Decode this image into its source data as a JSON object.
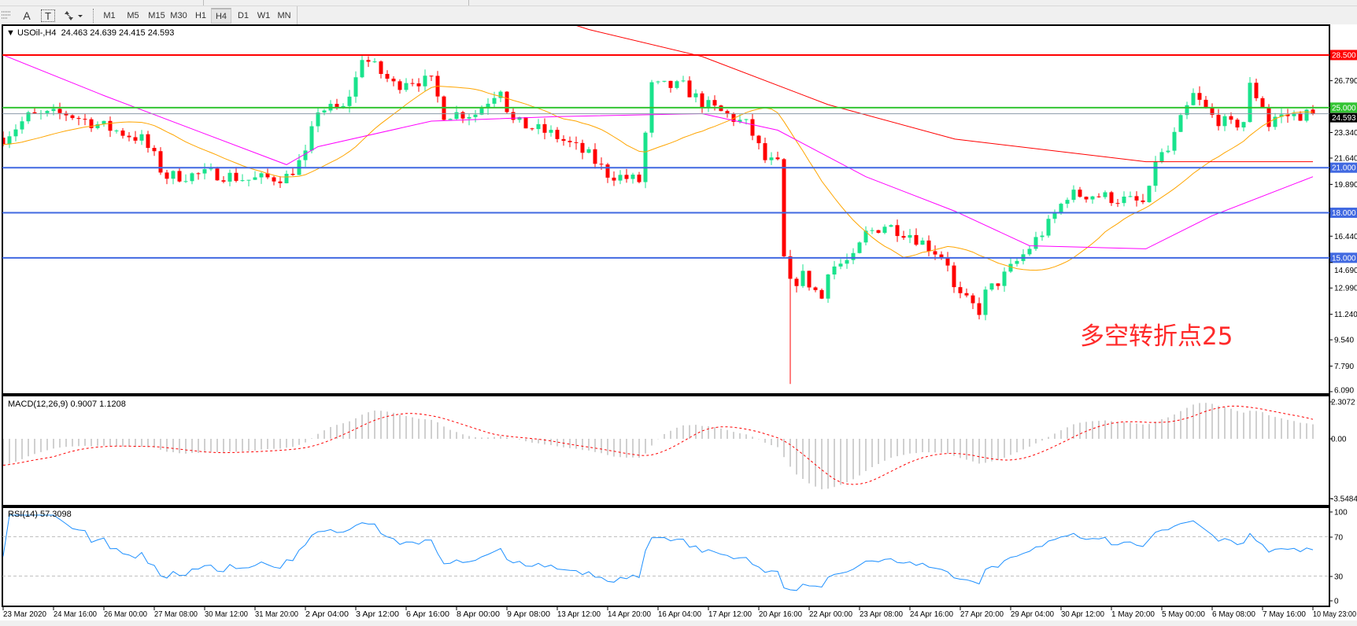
{
  "toolbar": {
    "icons": [
      "period-separator-icon",
      "text-icon",
      "text-label-icon",
      "arrows-icon"
    ],
    "text_icon_glyph": "A",
    "label_icon_glyph": "T",
    "timeframes": [
      "M1",
      "M5",
      "M15",
      "M30",
      "H1",
      "H4",
      "D1",
      "W1",
      "MN"
    ],
    "active_timeframe": "H4"
  },
  "chart": {
    "symbol": "USOil-,H4",
    "ohlc": "24.463 24.639 24.415 24.593",
    "annotation": "多空转折点25",
    "annotation_color": "#ff2a2a",
    "bull_color": "#19e38c",
    "bear_color": "#ff0000",
    "current_price": {
      "price": 24.593,
      "label": "24.593"
    },
    "price_axis": [
      "26.790",
      "23.340",
      "21.640",
      "19.890",
      "16.440",
      "14.690",
      "12.990",
      "11.240",
      "9.540",
      "7.790",
      "6.090"
    ],
    "hlines": [
      {
        "price": 28.5,
        "label": "28.500",
        "color": "#ff0000"
      },
      {
        "price": 25.0,
        "label": "25.000",
        "color": "#33c433"
      },
      {
        "price": 21.0,
        "label": "21.000",
        "color": "#4169e1"
      },
      {
        "price": 18.0,
        "label": "18.000",
        "color": "#4169e1"
      },
      {
        "price": 15.0,
        "label": "15.000",
        "color": "#4169e1"
      }
    ]
  },
  "chart_data": {
    "type": "candlestick",
    "x_ticks": [
      "23 Mar 2020",
      "24 Mar 16:00",
      "26 Mar 00:00",
      "27 Mar 08:00",
      "30 Mar 12:00",
      "31 Mar 20:00",
      "2 Apr 04:00",
      "3 Apr 12:00",
      "6 Apr 16:00",
      "8 Apr 00:00",
      "9 Apr 08:00",
      "13 Apr 12:00",
      "14 Apr 20:00",
      "16 Apr 04:00",
      "17 Apr 12:00",
      "20 Apr 16:00",
      "22 Apr 00:00",
      "23 Apr 08:00",
      "24 Apr 16:00",
      "27 Apr 20:00",
      "29 Apr 04:00",
      "30 Apr 12:00",
      "1 May 20:00",
      "5 May 00:00",
      "6 May 08:00",
      "7 May 16:00",
      "10 May 23:00"
    ],
    "price_range": [
      6.09,
      30.3
    ],
    "close_path": [
      {
        "t": "23 Mar 00:00",
        "close": 23.0
      },
      {
        "t": "23 Mar 20:00",
        "close": 24.4
      },
      {
        "t": "25 Mar 00:00",
        "close": 24.6
      },
      {
        "t": "26 Mar 04:00",
        "close": 23.6
      },
      {
        "t": "27 Mar 00:00",
        "close": 22.9
      },
      {
        "t": "27 Mar 16:00",
        "close": 21.2
      },
      {
        "t": "27 Mar 20:00",
        "close": 20.4
      },
      {
        "t": "30 Mar 20:00",
        "close": 20.6
      },
      {
        "t": "31 Mar 16:00",
        "close": 20.2
      },
      {
        "t": "1 Apr 16:00",
        "close": 20.4
      },
      {
        "t": "2 Apr 04:00",
        "close": 21.8
      },
      {
        "t": "2 Apr 12:00",
        "close": 24.9
      },
      {
        "t": "3 Apr 04:00",
        "close": 24.9
      },
      {
        "t": "3 Apr 12:00",
        "close": 26.9
      },
      {
        "t": "3 Apr 20:00",
        "close": 28.5
      },
      {
        "t": "6 Apr 00:00",
        "close": 26.4
      },
      {
        "t": "6 Apr 16:00",
        "close": 26.9
      },
      {
        "t": "7 Apr 08:00",
        "close": 26.7
      },
      {
        "t": "7 Apr 16:00",
        "close": 24.6
      },
      {
        "t": "8 Apr 12:00",
        "close": 24.6
      },
      {
        "t": "9 Apr 04:00",
        "close": 26.4
      },
      {
        "t": "9 Apr 16:00",
        "close": 24.1
      },
      {
        "t": "13 Apr 04:00",
        "close": 23.2
      },
      {
        "t": "14 Apr 08:00",
        "close": 21.8
      },
      {
        "t": "14 Apr 20:00",
        "close": 20.6
      },
      {
        "t": "15 Apr 16:00",
        "close": 20.1
      },
      {
        "t": "16 Apr 00:00",
        "close": 26.4
      },
      {
        "t": "16 Apr 20:00",
        "close": 26.4
      },
      {
        "t": "17 Apr 08:00",
        "close": 25.3
      },
      {
        "t": "20 Apr 00:00",
        "close": 23.8
      },
      {
        "t": "20 Apr 20:00",
        "close": 21.5
      },
      {
        "t": "21 Apr 04:00",
        "close": 21.2
      },
      {
        "t": "21 Apr 08:00",
        "close": 14.9
      },
      {
        "t": "21 Apr 12:00",
        "close": 13.2,
        "low": 6.6
      },
      {
        "t": "21 Apr 20:00",
        "close": 13.8
      },
      {
        "t": "22 Apr 08:00",
        "close": 12.3
      },
      {
        "t": "22 Apr 12:00",
        "close": 14.3
      },
      {
        "t": "23 Apr 04:00",
        "close": 14.9
      },
      {
        "t": "23 Apr 12:00",
        "close": 16.6
      },
      {
        "t": "24 Apr 00:00",
        "close": 17.2
      },
      {
        "t": "24 Apr 16:00",
        "close": 16.6
      },
      {
        "t": "27 Apr 00:00",
        "close": 14.9
      },
      {
        "t": "27 Apr 12:00",
        "close": 12.6
      },
      {
        "t": "28 Apr 08:00",
        "close": 11.5
      },
      {
        "t": "28 Apr 12:00",
        "close": 12.6
      },
      {
        "t": "29 Apr 00:00",
        "close": 13.8
      },
      {
        "t": "29 Apr 12:00",
        "close": 15.2
      },
      {
        "t": "30 Apr 04:00",
        "close": 17.2
      },
      {
        "t": "30 Apr 16:00",
        "close": 19.2
      },
      {
        "t": "1 May 08:00",
        "close": 19.2
      },
      {
        "t": "4 May 00:00",
        "close": 18.6
      },
      {
        "t": "4 May 08:00",
        "close": 19.8
      },
      {
        "t": "4 May 12:00",
        "close": 21.5
      },
      {
        "t": "5 May 04:00",
        "close": 22.1
      },
      {
        "t": "5 May 12:00",
        "close": 24.1
      },
      {
        "t": "5 May 20:00",
        "close": 25.8
      },
      {
        "t": "6 May 08:00",
        "close": 24.4
      },
      {
        "t": "6 May 20:00",
        "close": 23.8
      },
      {
        "t": "7 May 04:00",
        "close": 24.1
      },
      {
        "t": "7 May 08:00",
        "close": 26.4
      },
      {
        "t": "7 May 16:00",
        "close": 25.2
      },
      {
        "t": "7 May 20:00",
        "close": 23.5
      },
      {
        "t": "8 May 12:00",
        "close": 24.4
      },
      {
        "t": "10 May 23:00",
        "close": 24.593
      }
    ],
    "moving_averages": [
      {
        "color": "#ffa500",
        "computed_sma_period": 20
      },
      {
        "color": "#ff00ff",
        "path": [
          {
            "t": "23 Mar 00:00",
            "v": 28.5
          },
          {
            "t": "26 Mar 00:00",
            "v": 25.8
          },
          {
            "t": "1 Apr 16:00",
            "v": 21.2
          },
          {
            "t": "2 Apr 12:00",
            "v": 22.4
          },
          {
            "t": "7 Apr 08:00",
            "v": 24.1
          },
          {
            "t": "13 Apr 12:00",
            "v": 24.4
          },
          {
            "t": "17 Apr 08:00",
            "v": 24.6
          },
          {
            "t": "21 Apr 04:00",
            "v": 23.5
          },
          {
            "t": "23 Apr 12:00",
            "v": 20.4
          },
          {
            "t": "27 Apr 12:00",
            "v": 18.1
          },
          {
            "t": "29 Apr 16:00",
            "v": 15.8
          },
          {
            "t": "4 May 00:00",
            "v": 15.6
          },
          {
            "t": "6 May 08:00",
            "v": 17.8
          },
          {
            "t": "10 May 23:00",
            "v": 20.4
          }
        ]
      },
      {
        "color": "#ff0000",
        "path": [
          {
            "t": "14 Apr 08:00",
            "v": 30.2
          },
          {
            "t": "17 Apr 08:00",
            "v": 28.4
          },
          {
            "t": "22 Apr 12:00",
            "v": 25.2
          },
          {
            "t": "27 Apr 12:00",
            "v": 22.9
          },
          {
            "t": "4 May 00:00",
            "v": 21.4
          },
          {
            "t": "10 May 23:00",
            "v": 21.4
          }
        ]
      }
    ],
    "macd": {
      "label": "MACD(12,26,9) 0.9007 1.1208",
      "axis": [
        "2.3072",
        "0.00",
        "-3.5484"
      ],
      "range": [
        -3.5484,
        2.3072
      ],
      "histogram_color": "#c0c0c0",
      "signal_color": "#ff0000"
    },
    "rsi": {
      "label": "RSI(14) 57.3098",
      "period": 14,
      "axis": [
        "100",
        "70",
        "30",
        "0"
      ],
      "levels": [
        70,
        30
      ],
      "color": "#1e90ff"
    }
  }
}
